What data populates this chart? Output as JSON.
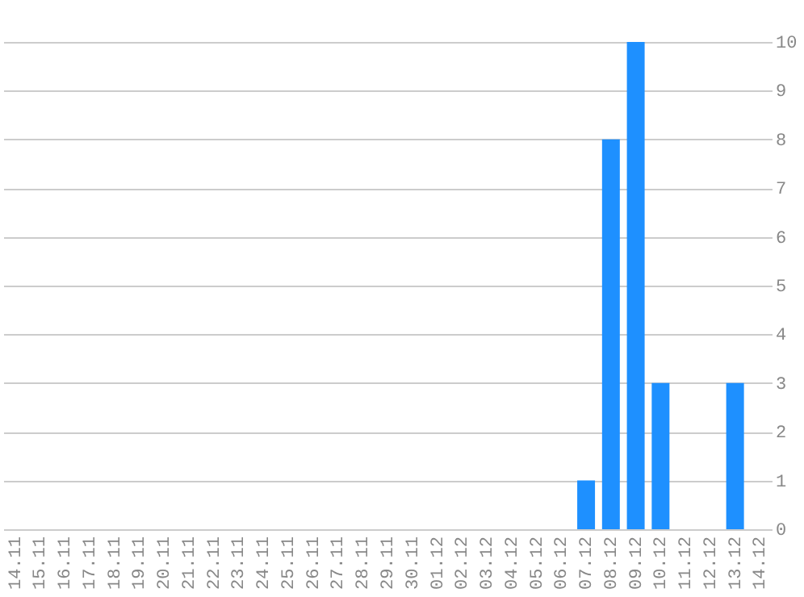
{
  "chart_data": {
    "type": "bar",
    "categories": [
      "14.11",
      "15.11",
      "16.11",
      "17.11",
      "18.11",
      "19.11",
      "20.11",
      "21.11",
      "22.11",
      "23.11",
      "24.11",
      "25.11",
      "26.11",
      "27.11",
      "28.11",
      "29.11",
      "30.11",
      "01.12",
      "02.12",
      "03.12",
      "04.12",
      "05.12",
      "06.12",
      "07.12",
      "08.12",
      "09.12",
      "10.12",
      "11.12",
      "12.12",
      "13.12",
      "14.12"
    ],
    "values": [
      0,
      0,
      0,
      0,
      0,
      0,
      0,
      0,
      0,
      0,
      0,
      0,
      0,
      0,
      0,
      0,
      0,
      0,
      0,
      0,
      0,
      0,
      0,
      1,
      8,
      10,
      3,
      0,
      0,
      3,
      0
    ],
    "color": "#1e90ff",
    "ylim": [
      0,
      10
    ],
    "yticks": [
      0,
      1,
      2,
      3,
      4,
      5,
      6,
      7,
      8,
      9,
      10
    ],
    "grid": "y"
  }
}
